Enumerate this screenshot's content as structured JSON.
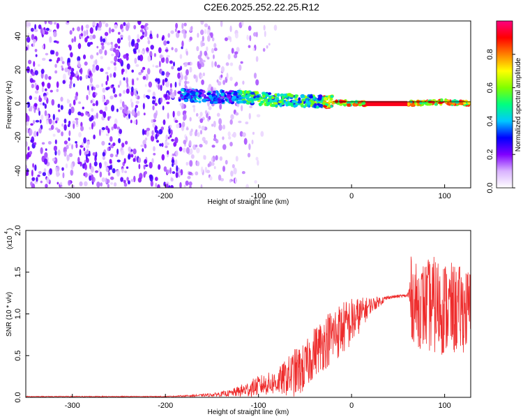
{
  "page_title": "C2E6.2025.252.22.25.R12",
  "colors": {
    "snr_line": "#ee2a2a",
    "axis": "#000000",
    "background": "#ffffff",
    "colormap": [
      "#ffffff",
      "#d9b3ff",
      "#8000ff",
      "#0000ff",
      "#00c8ff",
      "#00ff80",
      "#80ff00",
      "#ffff00",
      "#ff8000",
      "#ff0000",
      "#ff0080"
    ]
  },
  "chart_data": [
    {
      "type": "heatmap",
      "title": "C2E6.2025.252.22.25.R12",
      "xlabel": "Height of straight line (km)",
      "ylabel": "Frequency (Hz)",
      "xlim": [
        -350,
        128
      ],
      "ylim": [
        -50,
        49
      ],
      "xticks": [
        "-300",
        "-200",
        "-100",
        "0",
        "100"
      ],
      "xtick_values": [
        -300,
        -200,
        -100,
        0,
        100
      ],
      "yticks": [
        "-40",
        "-20",
        "0",
        "20",
        "40"
      ],
      "ytick_values": [
        -40,
        -20,
        0,
        20,
        40
      ],
      "colorbar": {
        "label": "Normalized spectral amplitude",
        "range": [
          0,
          1
        ],
        "ticks": [
          "0.0",
          "0.2",
          "0.4",
          "0.6",
          "0.8"
        ],
        "tick_values": [
          0,
          0.2,
          0.4,
          0.6,
          0.8
        ]
      },
      "features": {
        "noise_region_km": [
          -350,
          -180
        ],
        "noise_fade_end_km": -120,
        "signal_band_center_hz": [
          [
            -180,
            5
          ],
          [
            -150,
            4
          ],
          [
            -120,
            4
          ],
          [
            -100,
            3
          ],
          [
            -80,
            2
          ],
          [
            -60,
            2
          ],
          [
            -40,
            1
          ],
          [
            -20,
            1
          ],
          [
            0,
            0
          ],
          [
            60,
            0
          ],
          [
            100,
            1
          ],
          [
            128,
            0
          ]
        ],
        "gap_km": [
          15,
          60
        ]
      }
    },
    {
      "type": "line",
      "xlabel": "Height of straight line (km)",
      "ylabel": "SNR (10 * v/v)",
      "scale_label": "(x10",
      "scale_exponent": "4",
      "xlim": [
        -350,
        128
      ],
      "ylim": [
        0,
        2.0
      ],
      "xticks": [
        "-300",
        "-200",
        "-100",
        "0",
        "100"
      ],
      "xtick_values": [
        -300,
        -200,
        -100,
        0,
        100
      ],
      "yticks": [
        "0.0",
        "0.5",
        "1.0",
        "1.5",
        "2.0"
      ],
      "ytick_values": [
        0,
        0.5,
        1.0,
        1.5,
        2.0
      ],
      "envelope": {
        "x": [
          -350,
          -200,
          -170,
          -150,
          -130,
          -110,
          -100,
          -80,
          -60,
          -50,
          -40,
          -20,
          0,
          20,
          40,
          60,
          64,
          70,
          90,
          110,
          125
        ],
        "mean": [
          0.01,
          0.01,
          0.02,
          0.03,
          0.05,
          0.1,
          0.14,
          0.18,
          0.3,
          0.35,
          0.55,
          0.75,
          0.9,
          1.1,
          1.2,
          1.22,
          1.2,
          1.1,
          1.1,
          1.05,
          1.05
        ],
        "amplitude": [
          0.005,
          0.005,
          0.01,
          0.02,
          0.04,
          0.1,
          0.12,
          0.15,
          0.3,
          0.3,
          0.3,
          0.35,
          0.3,
          0.1,
          0.02,
          0.02,
          0.5,
          0.5,
          0.6,
          0.55,
          0.5
        ]
      }
    }
  ]
}
